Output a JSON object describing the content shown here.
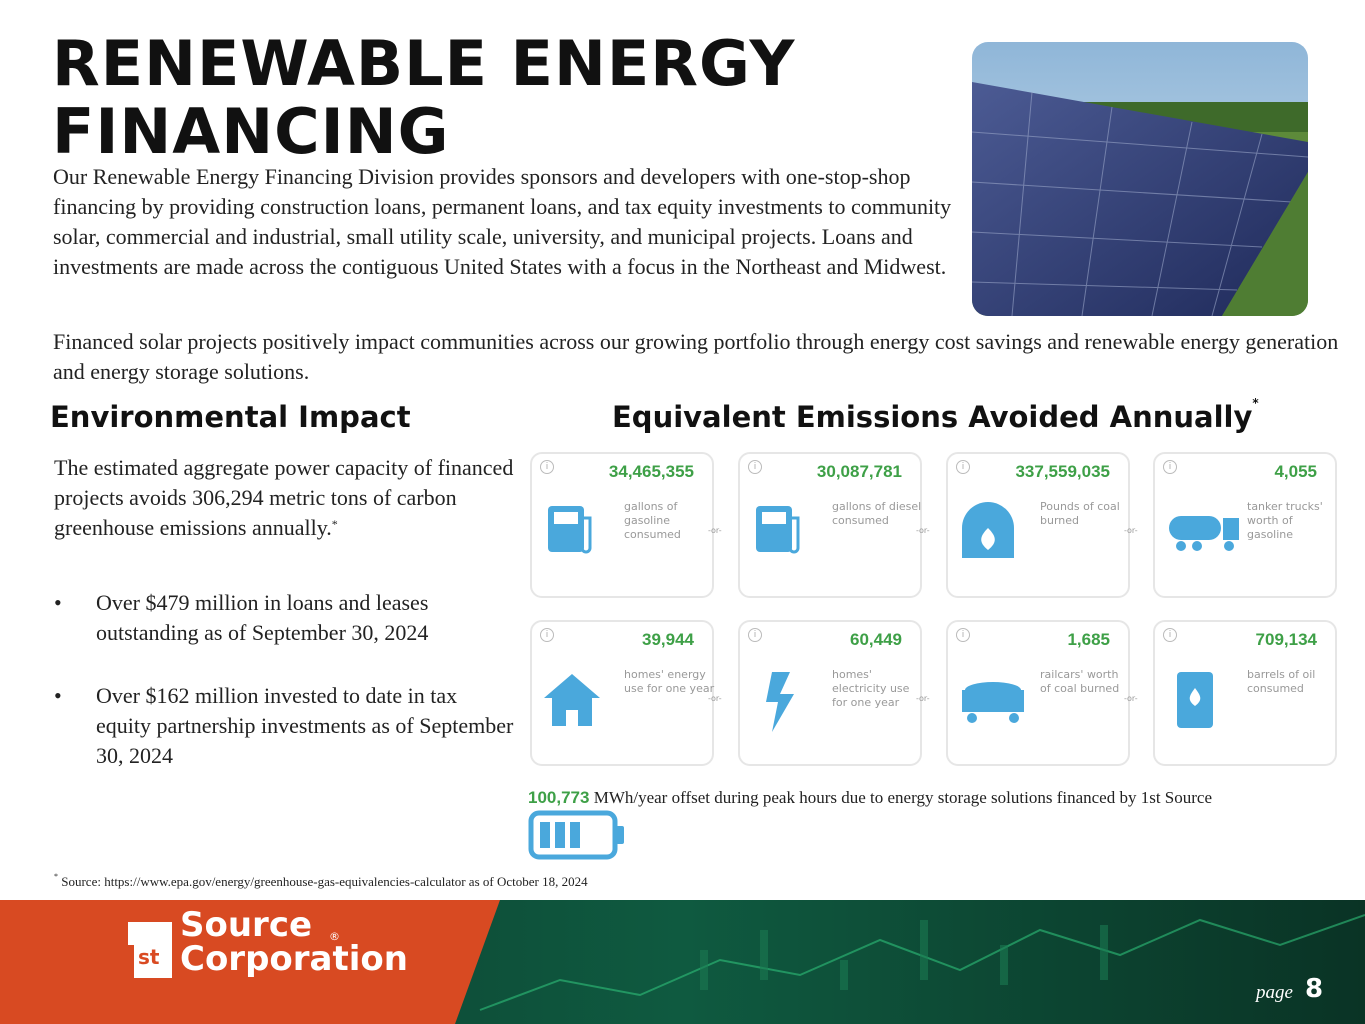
{
  "title": "RENEWABLE ENERGY FINANCING",
  "intro": [
    "Our Renewable Energy Financing Division provides sponsors and developers with one-stop-shop financing by providing construction loans, permanent loans, and tax equity investments to community solar, commercial and industrial, small utility scale, university, and municipal projects. Loans and investments are made across the contiguous United States with a focus in the Northeast and Midwest.",
    "Financed solar projects positively impact communities across our growing portfolio through energy cost savings and renewable energy generation and energy storage solutions."
  ],
  "environmental_impact": {
    "heading": "Environmental Impact",
    "text": "The estimated aggregate power capacity of financed projects avoids 306,294 metric tons of carbon greenhouse emissions annually.",
    "footnote_mark": "*",
    "bullet_symbol": "•",
    "bullets": [
      "Over $479 million in loans and leases outstanding as of September 30, 2024",
      "Over $162 million invested to date in tax equity partnership investments as of September 30, 2024"
    ]
  },
  "equivalents": {
    "heading": "Equivalent Emissions Avoided Annually",
    "footnote_mark": "*",
    "separator": "-or-",
    "info_mark": "i",
    "cards": [
      {
        "value": "34,465,355",
        "label": "gallons of gasoline consumed"
      },
      {
        "value": "30,087,781",
        "label": "gallons of diesel consumed"
      },
      {
        "value": "337,559,035",
        "label": "Pounds of coal burned"
      },
      {
        "value": "4,055",
        "label": "tanker trucks' worth of gasoline"
      },
      {
        "value": "39,944",
        "label": "homes' energy use for one year"
      },
      {
        "value": "60,449",
        "label": "homes' electricity use for one year"
      },
      {
        "value": "1,685",
        "label": "railcars' worth of coal burned"
      },
      {
        "value": "709,134",
        "label": "barrels of oil consumed"
      }
    ]
  },
  "storage": {
    "value": "100,773",
    "text": "MWh/year offset during peak hours due to energy storage solutions financed by 1st Source"
  },
  "footnote": {
    "mark": "*",
    "text": "Source: https://www.epa.gov/energy/greenhouse-gas-equivalencies-calculator as of October 18, 2024"
  },
  "logo": {
    "superscript": "st",
    "line1": "Source",
    "line2": "Corporation",
    "registered": "®"
  },
  "page": {
    "label": "page",
    "number": "8"
  }
}
